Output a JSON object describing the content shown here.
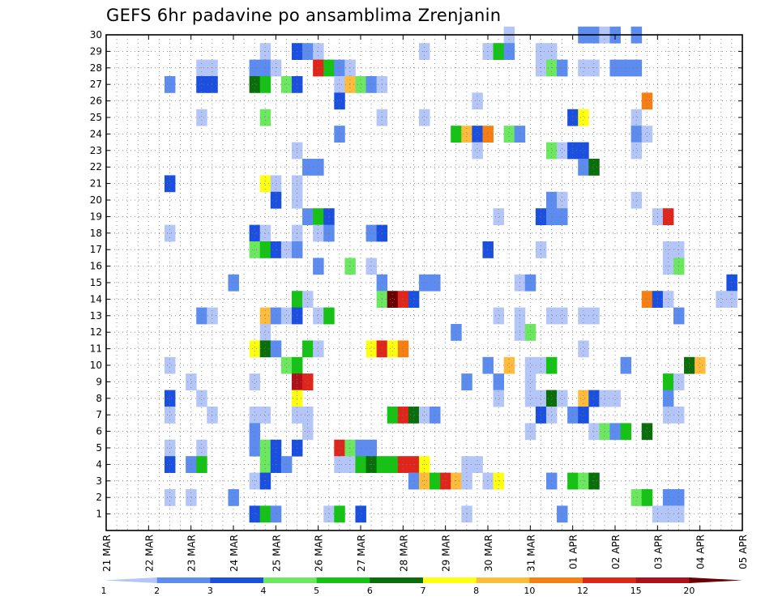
{
  "chart_data": {
    "type": "heatmap",
    "title": "GEFS 6hr padavine po ansamblima Zrenjanin",
    "xlabel": "",
    "ylabel": "",
    "x_tick_labels": [
      "21 MAR",
      "22 MAR",
      "23 MAR",
      "24 MAR",
      "25 MAR",
      "26 MAR",
      "27 MAR",
      "28 MAR",
      "29 MAR",
      "30 MAR",
      "31 MAR",
      "01 APR",
      "02 APR",
      "03 APR",
      "04 APR",
      "05 APR"
    ],
    "x_range_steps": [
      0,
      60
    ],
    "steps_per_day": 4,
    "y_tick_labels": [
      "1",
      "2",
      "3",
      "4",
      "5",
      "6",
      "7",
      "8",
      "9",
      "10",
      "11",
      "12",
      "13",
      "14",
      "15",
      "16",
      "17",
      "18",
      "19",
      "20",
      "21",
      "22",
      "23",
      "24",
      "25",
      "26",
      "27",
      "28",
      "29",
      "30"
    ],
    "y_range": [
      0,
      30
    ],
    "grid": true,
    "legend": {
      "placement": "bottom",
      "levels": [
        "1",
        "2",
        "3",
        "4",
        "5",
        "6",
        "7",
        "8",
        "10",
        "12",
        "15",
        "20"
      ],
      "colors": [
        "#b3c6f7",
        "#5c8cf0",
        "#1a4fe0",
        "#6ce860",
        "#15c315",
        "#0a6e0a",
        "#ffff10",
        "#ffbb3c",
        "#f77e12",
        "#e0251b",
        "#b0101a",
        "#6b0000"
      ]
    },
    "color_classes": {
      "L": "#b3c6f7",
      "M": "#5c8cf0",
      "B": "#1a4fe0",
      "g": "#6ce860",
      "G": "#15c315",
      "D": "#0a6e0a",
      "Y": "#ffff10",
      "O": "#ffbb3c",
      "o": "#f77e12",
      "r": "#e0251b",
      "R": "#b0101a",
      "K": "#6b0000"
    },
    "cells": [
      [
        45,
        30,
        "M"
      ],
      [
        46,
        30,
        "M"
      ],
      [
        47,
        30,
        "L"
      ],
      [
        48,
        30,
        "M"
      ],
      [
        50,
        30,
        "M"
      ],
      [
        38,
        30,
        "L"
      ],
      [
        15,
        29,
        "L"
      ],
      [
        18,
        29,
        "B"
      ],
      [
        19,
        29,
        "M"
      ],
      [
        20,
        29,
        "L"
      ],
      [
        30,
        29,
        "L"
      ],
      [
        36,
        29,
        "L"
      ],
      [
        37,
        29,
        "G"
      ],
      [
        38,
        29,
        "M"
      ],
      [
        41,
        29,
        "L"
      ],
      [
        42,
        29,
        "L"
      ],
      [
        9,
        28,
        "L"
      ],
      [
        10,
        28,
        "L"
      ],
      [
        14,
        28,
        "M"
      ],
      [
        15,
        28,
        "M"
      ],
      [
        16,
        28,
        "L"
      ],
      [
        20,
        28,
        "r"
      ],
      [
        21,
        28,
        "G"
      ],
      [
        22,
        28,
        "M"
      ],
      [
        23,
        28,
        "L"
      ],
      [
        41,
        28,
        "L"
      ],
      [
        42,
        28,
        "g"
      ],
      [
        43,
        28,
        "M"
      ],
      [
        45,
        28,
        "L"
      ],
      [
        46,
        28,
        "L"
      ],
      [
        48,
        28,
        "M"
      ],
      [
        49,
        28,
        "M"
      ],
      [
        50,
        28,
        "M"
      ],
      [
        6,
        27,
        "M"
      ],
      [
        9,
        27,
        "B"
      ],
      [
        10,
        27,
        "B"
      ],
      [
        14,
        27,
        "D"
      ],
      [
        15,
        27,
        "G"
      ],
      [
        17,
        27,
        "g"
      ],
      [
        18,
        27,
        "B"
      ],
      [
        22,
        27,
        "L"
      ],
      [
        23,
        27,
        "O"
      ],
      [
        24,
        27,
        "g"
      ],
      [
        25,
        27,
        "M"
      ],
      [
        26,
        27,
        "L"
      ],
      [
        22,
        26,
        "B"
      ],
      [
        35,
        26,
        "L"
      ],
      [
        51,
        26,
        "o"
      ],
      [
        9,
        25,
        "L"
      ],
      [
        15,
        25,
        "g"
      ],
      [
        26,
        25,
        "L"
      ],
      [
        30,
        25,
        "L"
      ],
      [
        44,
        25,
        "B"
      ],
      [
        45,
        25,
        "Y"
      ],
      [
        50,
        25,
        "L"
      ],
      [
        22,
        24,
        "M"
      ],
      [
        33,
        24,
        "G"
      ],
      [
        34,
        24,
        "O"
      ],
      [
        35,
        24,
        "B"
      ],
      [
        36,
        24,
        "o"
      ],
      [
        38,
        24,
        "g"
      ],
      [
        39,
        24,
        "M"
      ],
      [
        50,
        24,
        "M"
      ],
      [
        51,
        24,
        "L"
      ],
      [
        18,
        23,
        "L"
      ],
      [
        35,
        23,
        "L"
      ],
      [
        42,
        23,
        "g"
      ],
      [
        43,
        23,
        "L"
      ],
      [
        44,
        23,
        "B"
      ],
      [
        45,
        23,
        "B"
      ],
      [
        50,
        23,
        "L"
      ],
      [
        19,
        22,
        "M"
      ],
      [
        20,
        22,
        "M"
      ],
      [
        45,
        22,
        "M"
      ],
      [
        46,
        22,
        "D"
      ],
      [
        6,
        21,
        "B"
      ],
      [
        15,
        21,
        "Y"
      ],
      [
        16,
        21,
        "L"
      ],
      [
        18,
        21,
        "L"
      ],
      [
        16,
        20,
        "B"
      ],
      [
        18,
        20,
        "L"
      ],
      [
        42,
        20,
        "M"
      ],
      [
        43,
        20,
        "L"
      ],
      [
        50,
        20,
        "L"
      ],
      [
        19,
        19,
        "M"
      ],
      [
        20,
        19,
        "G"
      ],
      [
        21,
        19,
        "B"
      ],
      [
        37,
        19,
        "L"
      ],
      [
        41,
        19,
        "B"
      ],
      [
        42,
        19,
        "M"
      ],
      [
        43,
        19,
        "M"
      ],
      [
        52,
        19,
        "L"
      ],
      [
        53,
        19,
        "r"
      ],
      [
        6,
        18,
        "L"
      ],
      [
        14,
        18,
        "B"
      ],
      [
        15,
        18,
        "L"
      ],
      [
        18,
        18,
        "L"
      ],
      [
        20,
        18,
        "L"
      ],
      [
        21,
        18,
        "M"
      ],
      [
        25,
        18,
        "M"
      ],
      [
        26,
        18,
        "B"
      ],
      [
        14,
        17,
        "g"
      ],
      [
        15,
        17,
        "G"
      ],
      [
        16,
        17,
        "B"
      ],
      [
        17,
        17,
        "L"
      ],
      [
        18,
        17,
        "M"
      ],
      [
        36,
        17,
        "B"
      ],
      [
        41,
        17,
        "L"
      ],
      [
        53,
        17,
        "L"
      ],
      [
        54,
        17,
        "L"
      ],
      [
        20,
        16,
        "M"
      ],
      [
        23,
        16,
        "g"
      ],
      [
        25,
        16,
        "L"
      ],
      [
        53,
        16,
        "L"
      ],
      [
        54,
        16,
        "g"
      ],
      [
        12,
        15,
        "M"
      ],
      [
        26,
        15,
        "M"
      ],
      [
        30,
        15,
        "M"
      ],
      [
        31,
        15,
        "M"
      ],
      [
        39,
        15,
        "L"
      ],
      [
        40,
        15,
        "M"
      ],
      [
        59,
        15,
        "B"
      ],
      [
        18,
        14,
        "G"
      ],
      [
        19,
        14,
        "L"
      ],
      [
        26,
        14,
        "g"
      ],
      [
        27,
        14,
        "K"
      ],
      [
        28,
        14,
        "r"
      ],
      [
        29,
        14,
        "B"
      ],
      [
        51,
        14,
        "o"
      ],
      [
        52,
        14,
        "B"
      ],
      [
        53,
        14,
        "L"
      ],
      [
        58,
        14,
        "L"
      ],
      [
        59,
        14,
        "L"
      ],
      [
        9,
        13,
        "M"
      ],
      [
        10,
        13,
        "L"
      ],
      [
        15,
        13,
        "O"
      ],
      [
        16,
        13,
        "M"
      ],
      [
        17,
        13,
        "L"
      ],
      [
        18,
        13,
        "B"
      ],
      [
        20,
        13,
        "L"
      ],
      [
        21,
        13,
        "G"
      ],
      [
        37,
        13,
        "L"
      ],
      [
        39,
        13,
        "L"
      ],
      [
        42,
        13,
        "L"
      ],
      [
        43,
        13,
        "L"
      ],
      [
        45,
        13,
        "L"
      ],
      [
        46,
        13,
        "L"
      ],
      [
        54,
        13,
        "M"
      ],
      [
        15,
        12,
        "L"
      ],
      [
        33,
        12,
        "M"
      ],
      [
        39,
        12,
        "L"
      ],
      [
        40,
        12,
        "g"
      ],
      [
        14,
        11,
        "Y"
      ],
      [
        15,
        11,
        "D"
      ],
      [
        16,
        11,
        "M"
      ],
      [
        19,
        11,
        "G"
      ],
      [
        20,
        11,
        "L"
      ],
      [
        25,
        11,
        "Y"
      ],
      [
        26,
        11,
        "r"
      ],
      [
        27,
        11,
        "Y"
      ],
      [
        28,
        11,
        "o"
      ],
      [
        45,
        11,
        "L"
      ],
      [
        6,
        10,
        "L"
      ],
      [
        17,
        10,
        "g"
      ],
      [
        18,
        10,
        "G"
      ],
      [
        36,
        10,
        "M"
      ],
      [
        38,
        10,
        "O"
      ],
      [
        40,
        10,
        "L"
      ],
      [
        41,
        10,
        "L"
      ],
      [
        42,
        10,
        "G"
      ],
      [
        49,
        10,
        "M"
      ],
      [
        55,
        10,
        "D"
      ],
      [
        56,
        10,
        "O"
      ],
      [
        8,
        9,
        "L"
      ],
      [
        14,
        9,
        "L"
      ],
      [
        18,
        9,
        "R"
      ],
      [
        19,
        9,
        "r"
      ],
      [
        34,
        9,
        "M"
      ],
      [
        37,
        9,
        "M"
      ],
      [
        40,
        9,
        "L"
      ],
      [
        53,
        9,
        "G"
      ],
      [
        54,
        9,
        "L"
      ],
      [
        6,
        8,
        "B"
      ],
      [
        9,
        8,
        "L"
      ],
      [
        18,
        8,
        "Y"
      ],
      [
        37,
        8,
        "L"
      ],
      [
        40,
        8,
        "L"
      ],
      [
        41,
        8,
        "L"
      ],
      [
        42,
        8,
        "D"
      ],
      [
        43,
        8,
        "L"
      ],
      [
        45,
        8,
        "O"
      ],
      [
        46,
        8,
        "B"
      ],
      [
        47,
        8,
        "L"
      ],
      [
        48,
        8,
        "L"
      ],
      [
        53,
        8,
        "M"
      ],
      [
        6,
        7,
        "L"
      ],
      [
        10,
        7,
        "L"
      ],
      [
        14,
        7,
        "L"
      ],
      [
        15,
        7,
        "L"
      ],
      [
        18,
        7,
        "L"
      ],
      [
        19,
        7,
        "L"
      ],
      [
        27,
        7,
        "G"
      ],
      [
        28,
        7,
        "r"
      ],
      [
        29,
        7,
        "D"
      ],
      [
        30,
        7,
        "L"
      ],
      [
        31,
        7,
        "M"
      ],
      [
        41,
        7,
        "B"
      ],
      [
        42,
        7,
        "L"
      ],
      [
        44,
        7,
        "M"
      ],
      [
        45,
        7,
        "B"
      ],
      [
        53,
        7,
        "L"
      ],
      [
        54,
        7,
        "L"
      ],
      [
        14,
        6,
        "M"
      ],
      [
        19,
        6,
        "L"
      ],
      [
        40,
        6,
        "L"
      ],
      [
        46,
        6,
        "L"
      ],
      [
        47,
        6,
        "g"
      ],
      [
        48,
        6,
        "M"
      ],
      [
        49,
        6,
        "G"
      ],
      [
        51,
        6,
        "D"
      ],
      [
        6,
        5,
        "L"
      ],
      [
        9,
        5,
        "L"
      ],
      [
        14,
        5,
        "M"
      ],
      [
        15,
        5,
        "g"
      ],
      [
        16,
        5,
        "B"
      ],
      [
        18,
        5,
        "B"
      ],
      [
        22,
        5,
        "r"
      ],
      [
        23,
        5,
        "g"
      ],
      [
        24,
        5,
        "M"
      ],
      [
        25,
        5,
        "M"
      ],
      [
        6,
        4,
        "B"
      ],
      [
        8,
        4,
        "M"
      ],
      [
        9,
        4,
        "G"
      ],
      [
        15,
        4,
        "g"
      ],
      [
        16,
        4,
        "B"
      ],
      [
        17,
        4,
        "M"
      ],
      [
        22,
        4,
        "L"
      ],
      [
        23,
        4,
        "L"
      ],
      [
        24,
        4,
        "G"
      ],
      [
        25,
        4,
        "D"
      ],
      [
        26,
        4,
        "G"
      ],
      [
        27,
        4,
        "G"
      ],
      [
        28,
        4,
        "r"
      ],
      [
        29,
        4,
        "r"
      ],
      [
        30,
        4,
        "Y"
      ],
      [
        34,
        4,
        "L"
      ],
      [
        35,
        4,
        "L"
      ],
      [
        14,
        3,
        "L"
      ],
      [
        15,
        3,
        "B"
      ],
      [
        29,
        3,
        "M"
      ],
      [
        30,
        3,
        "O"
      ],
      [
        31,
        3,
        "G"
      ],
      [
        32,
        3,
        "r"
      ],
      [
        33,
        3,
        "O"
      ],
      [
        34,
        3,
        "L"
      ],
      [
        36,
        3,
        "L"
      ],
      [
        37,
        3,
        "Y"
      ],
      [
        42,
        3,
        "M"
      ],
      [
        44,
        3,
        "G"
      ],
      [
        45,
        3,
        "g"
      ],
      [
        46,
        3,
        "D"
      ],
      [
        6,
        2,
        "L"
      ],
      [
        8,
        2,
        "L"
      ],
      [
        12,
        2,
        "M"
      ],
      [
        50,
        2,
        "g"
      ],
      [
        51,
        2,
        "G"
      ],
      [
        53,
        2,
        "M"
      ],
      [
        54,
        2,
        "M"
      ],
      [
        14,
        1,
        "B"
      ],
      [
        15,
        1,
        "G"
      ],
      [
        16,
        1,
        "M"
      ],
      [
        21,
        1,
        "L"
      ],
      [
        22,
        1,
        "G"
      ],
      [
        24,
        1,
        "B"
      ],
      [
        34,
        1,
        "L"
      ],
      [
        43,
        1,
        "M"
      ],
      [
        52,
        1,
        "L"
      ],
      [
        53,
        1,
        "L"
      ],
      [
        54,
        1,
        "L"
      ]
    ]
  }
}
